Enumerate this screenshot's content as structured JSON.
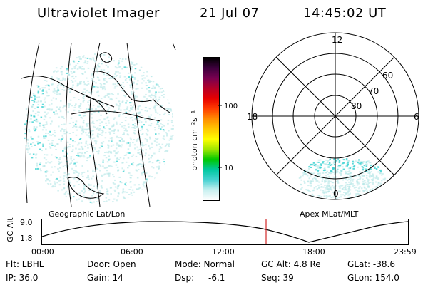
{
  "header": {
    "title": "Ultraviolet Imager",
    "date": "21 Jul 07",
    "time": "14:45:02 UT"
  },
  "colorbar": {
    "label": "photon cm⁻²s⁻¹",
    "ticks": [
      "100",
      "10"
    ],
    "colors": [
      "#ffffff",
      "#c8f0f0",
      "#46d2d2",
      "#00c8a0",
      "#00c800",
      "#a0e600",
      "#ffff00",
      "#ffc800",
      "#ff8c00",
      "#ff3c00",
      "#e60000",
      "#b40028",
      "#780050",
      "#3c003c",
      "#000000"
    ]
  },
  "polar": {
    "mlt_labels": [
      "12",
      "18",
      "6",
      "0"
    ],
    "lat_labels": [
      "60",
      "70",
      "80"
    ]
  },
  "timeline": {
    "left_title": "Geographic Lat/Lon",
    "right_title": "Apex MLat/MLT",
    "y_axis_label": "GC Alt",
    "y_ticks": [
      "9.0",
      "1.8"
    ],
    "x_ticks": [
      "00:00",
      "06:00",
      "12:00",
      "18:00",
      "23:59"
    ]
  },
  "info": {
    "flt": "Flt: LBHL",
    "ip": "IP: 36.0",
    "door": "Door: Open",
    "gain": "Gain: 14",
    "mode": "Mode: Normal",
    "dsp": "Dsp:",
    "dsp_value": "-6.1",
    "gc_alt": "GC Alt: 4.8 Re",
    "seq": "Seq: 39",
    "glat": "GLat: -38.6",
    "glon": "GLon: 154.0"
  },
  "colors": {
    "speckle": "#b4e6e6",
    "speckle_strong": "#3cd2d2",
    "marker": "#d22828"
  }
}
